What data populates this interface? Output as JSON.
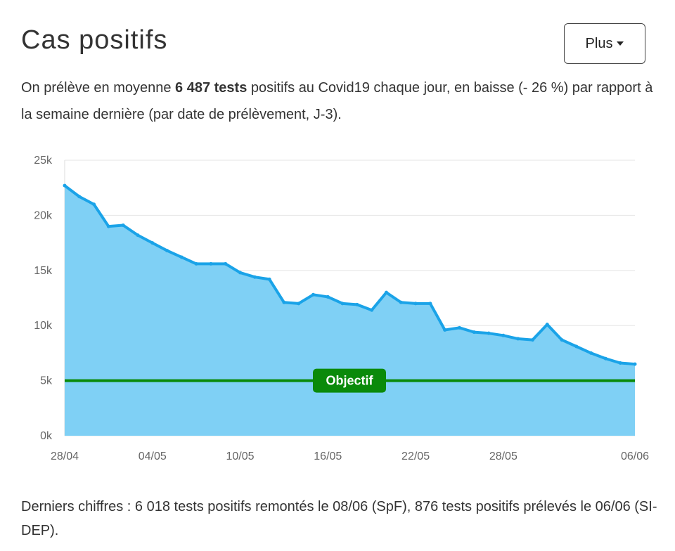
{
  "header": {
    "title": "Cas positifs",
    "plus_label": "Plus"
  },
  "intro": {
    "before": "On prélève en moyenne ",
    "bold": "6 487 tests",
    "after": " positifs au Covid19 chaque jour, en baisse (- 26 %) par rapport à la semaine dernière (par date de prélèvement, J-3)."
  },
  "footer": {
    "text": "Derniers chiffres : 6 018 tests positifs remontés le 08/06 (SpF), 876 tests positifs prélevés le 06/06 (SI-DEP)."
  },
  "chart_data": {
    "type": "area",
    "x_start": "28/04",
    "x_end": "06/06",
    "x_tick_labels": [
      "28/04",
      "04/05",
      "10/05",
      "16/05",
      "22/05",
      "28/05",
      "06/06"
    ],
    "x_tick_day_index": [
      0,
      6,
      12,
      18,
      24,
      30,
      39
    ],
    "y_tick_labels": [
      "0k",
      "5k",
      "10k",
      "15k",
      "20k",
      "25k"
    ],
    "ylim": [
      0,
      25000
    ],
    "grid": true,
    "values": [
      22700,
      21700,
      21000,
      19000,
      19100,
      18200,
      17500,
      16800,
      16200,
      15600,
      15600,
      15600,
      14800,
      14400,
      14200,
      12100,
      12000,
      12800,
      12600,
      12000,
      11900,
      11400,
      13000,
      12100,
      12000,
      12000,
      9600,
      9800,
      9400,
      9300,
      9100,
      8800,
      8700,
      10100,
      8700,
      8100,
      7500,
      7000,
      6600,
      6500
    ],
    "objective": {
      "label": "Objectif",
      "value": 5000,
      "color": "#0a8a0a"
    },
    "line_color": "#1aa3e8",
    "fill_color": "#7fd0f5"
  }
}
